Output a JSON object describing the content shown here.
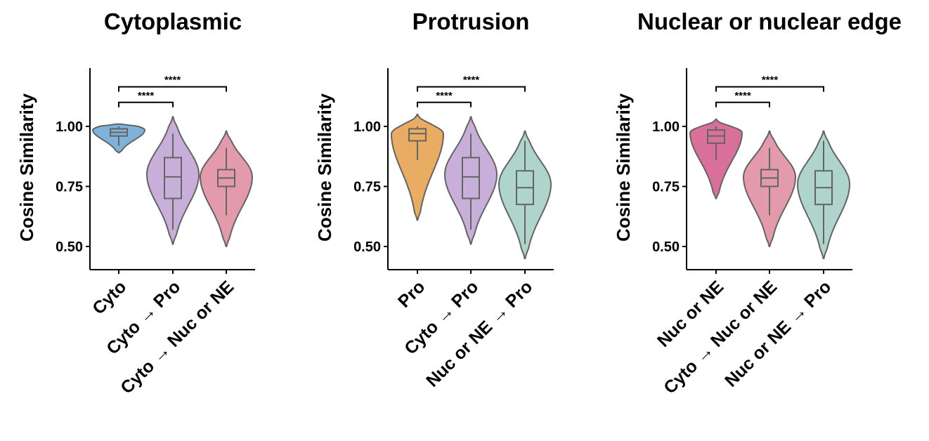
{
  "chart_data": [
    {
      "type": "violin",
      "title": "Cytoplasmic",
      "ylabel": "Cosine Similarity",
      "ylim": [
        0.4,
        1.25
      ],
      "yticks": [
        "0.50",
        "0.75",
        "1.00"
      ],
      "grid": false,
      "categories": [
        "Cyto",
        "Cyto → Pro",
        "Cyto → Nuc or NE"
      ],
      "violins": [
        {
          "color": "#7fb2d8",
          "min": 0.89,
          "max": 1.01,
          "mode": 0.985,
          "q1": 0.96,
          "median": 0.975,
          "q3": 0.99,
          "whisker_low": 0.92,
          "whisker_high": 1.0
        },
        {
          "color": "#c7afd9",
          "min": 0.51,
          "max": 1.04,
          "mode": 0.8,
          "q1": 0.7,
          "median": 0.79,
          "q3": 0.87,
          "whisker_low": 0.57,
          "whisker_high": 0.97
        },
        {
          "color": "#e39aab",
          "min": 0.5,
          "max": 0.98,
          "mode": 0.79,
          "q1": 0.75,
          "median": 0.785,
          "q3": 0.82,
          "whisker_low": 0.63,
          "whisker_high": 0.91
        }
      ],
      "significance": [
        {
          "from": 0,
          "to": 1,
          "label": "****",
          "y": 1.1
        },
        {
          "from": 0,
          "to": 2,
          "label": "****",
          "y": 1.165
        }
      ]
    },
    {
      "type": "violin",
      "title": "Protrusion",
      "ylabel": "Cosine Similarity",
      "ylim": [
        0.4,
        1.25
      ],
      "yticks": [
        "0.50",
        "0.75",
        "1.00"
      ],
      "grid": false,
      "categories": [
        "Pro",
        "Cyto → Pro",
        "Nuc or NE → Pro"
      ],
      "violins": [
        {
          "color": "#e8ac62",
          "min": 0.61,
          "max": 1.05,
          "mode": 0.97,
          "q1": 0.94,
          "median": 0.97,
          "q3": 0.99,
          "whisker_low": 0.86,
          "whisker_high": 1.0
        },
        {
          "color": "#c7afd9",
          "min": 0.51,
          "max": 1.04,
          "mode": 0.8,
          "q1": 0.7,
          "median": 0.79,
          "q3": 0.87,
          "whisker_low": 0.57,
          "whisker_high": 0.97
        },
        {
          "color": "#afd4cc",
          "min": 0.45,
          "max": 0.98,
          "mode": 0.76,
          "q1": 0.675,
          "median": 0.745,
          "q3": 0.815,
          "whisker_low": 0.51,
          "whisker_high": 0.94
        }
      ],
      "significance": [
        {
          "from": 0,
          "to": 1,
          "label": "****",
          "y": 1.1
        },
        {
          "from": 0,
          "to": 2,
          "label": "****",
          "y": 1.165
        }
      ]
    },
    {
      "type": "violin",
      "title": "Nuclear or nuclear edge",
      "ylabel": "Cosine Similarity",
      "ylim": [
        0.4,
        1.25
      ],
      "yticks": [
        "0.50",
        "0.75",
        "1.00"
      ],
      "grid": false,
      "categories": [
        "Nuc or NE",
        "Cyto → Nuc or NE",
        "Nuc or NE → Pro"
      ],
      "violins": [
        {
          "color": "#d97099",
          "min": 0.7,
          "max": 1.03,
          "mode": 0.975,
          "q1": 0.93,
          "median": 0.96,
          "q3": 0.985,
          "whisker_low": 0.86,
          "whisker_high": 1.0
        },
        {
          "color": "#e39aab",
          "min": 0.5,
          "max": 0.98,
          "mode": 0.79,
          "q1": 0.75,
          "median": 0.785,
          "q3": 0.82,
          "whisker_low": 0.63,
          "whisker_high": 0.91
        },
        {
          "color": "#afd4cc",
          "min": 0.45,
          "max": 0.98,
          "mode": 0.76,
          "q1": 0.675,
          "median": 0.745,
          "q3": 0.815,
          "whisker_low": 0.51,
          "whisker_high": 0.94
        }
      ],
      "significance": [
        {
          "from": 0,
          "to": 1,
          "label": "****",
          "y": 1.1
        },
        {
          "from": 0,
          "to": 2,
          "label": "****",
          "y": 1.165
        }
      ]
    }
  ]
}
